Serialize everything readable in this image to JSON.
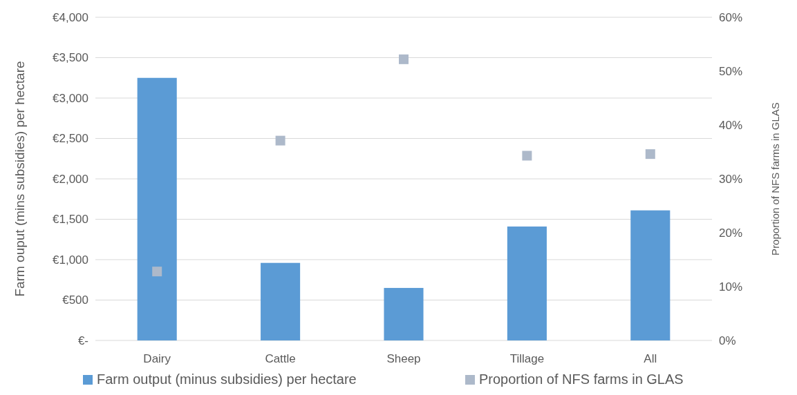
{
  "chart_data": {
    "type": "bar",
    "categories": [
      "Dairy",
      "Cattle",
      "Sheep",
      "Tillage",
      "All"
    ],
    "series": [
      {
        "name": "Farm output (minus subsidies) per hectare",
        "color": "#5b9bd5",
        "values": [
          3250,
          960,
          650,
          1410,
          1610
        ]
      },
      {
        "name": "Proportion of NFS farms in GLAS",
        "type": "scatter",
        "axis": "y2",
        "marker": "square",
        "color": "#adb9ca",
        "x": [
          "Dairy",
          "Cattle",
          "Sheep",
          "Tillage",
          "All"
        ],
        "values": [
          12.8,
          37.1,
          52.2,
          34.3,
          34.6
        ]
      }
    ],
    "ylabel": "Farm ouput (mins subsidies) per hectare",
    "y2label": "Proportion of NFS farms in GLAS",
    "ylim": [
      0,
      4000
    ],
    "yticks": [
      {
        "value": 0,
        "label": "€-"
      },
      {
        "value": 500,
        "label": "€500"
      },
      {
        "value": 1000,
        "label": "€1,000"
      },
      {
        "value": 1500,
        "label": "€1,500"
      },
      {
        "value": 2000,
        "label": "€2,000"
      },
      {
        "value": 2500,
        "label": "€2,500"
      },
      {
        "value": 3000,
        "label": "€3,000"
      },
      {
        "value": 3500,
        "label": "€3,500"
      },
      {
        "value": 4000,
        "label": "€4,000"
      }
    ],
    "y2lim": [
      0,
      60
    ],
    "y2ticks": [
      {
        "value": 0,
        "label": "0%"
      },
      {
        "value": 10,
        "label": "10%"
      },
      {
        "value": 20,
        "label": "20%"
      },
      {
        "value": 30,
        "label": "30%"
      },
      {
        "value": 40,
        "label": "40%"
      },
      {
        "value": 50,
        "label": "50%"
      },
      {
        "value": 60,
        "label": "60%"
      }
    ],
    "grid": "y",
    "legend": "bottom"
  }
}
